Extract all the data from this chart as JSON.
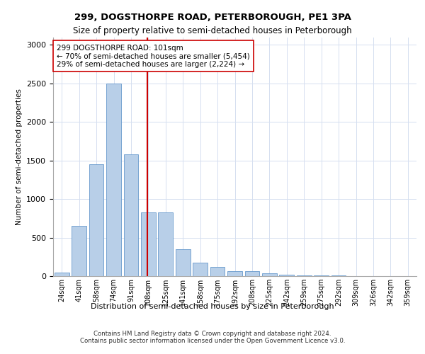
{
  "title1": "299, DOGSTHORPE ROAD, PETERBOROUGH, PE1 3PA",
  "title2": "Size of property relative to semi-detached houses in Peterborough",
  "xlabel": "Distribution of semi-detached houses by size in Peterborough",
  "ylabel": "Number of semi-detached properties",
  "footer1": "Contains HM Land Registry data © Crown copyright and database right 2024.",
  "footer2": "Contains public sector information licensed under the Open Government Licence v3.0.",
  "bar_color": "#b8cfe8",
  "bar_edge_color": "#6699cc",
  "marker_color": "#cc0000",
  "annotation_text": "299 DOGSTHORPE ROAD: 101sqm\n← 70% of semi-detached houses are smaller (5,454)\n29% of semi-detached houses are larger (2,224) →",
  "property_sqm": 101,
  "categories": [
    "24sqm",
    "41sqm",
    "58sqm",
    "74sqm",
    "91sqm",
    "108sqm",
    "125sqm",
    "141sqm",
    "158sqm",
    "175sqm",
    "192sqm",
    "208sqm",
    "225sqm",
    "242sqm",
    "259sqm",
    "275sqm",
    "292sqm",
    "309sqm",
    "326sqm",
    "342sqm",
    "359sqm"
  ],
  "values": [
    50,
    650,
    1450,
    2500,
    1580,
    830,
    830,
    345,
    175,
    115,
    65,
    60,
    35,
    20,
    10,
    8,
    5,
    3,
    2,
    2,
    2
  ],
  "ylim": [
    0,
    3100
  ],
  "yticks": [
    0,
    500,
    1000,
    1500,
    2000,
    2500,
    3000
  ],
  "property_line_x": 4.94,
  "background_color": "#ffffff",
  "grid_color": "#d5dff0"
}
